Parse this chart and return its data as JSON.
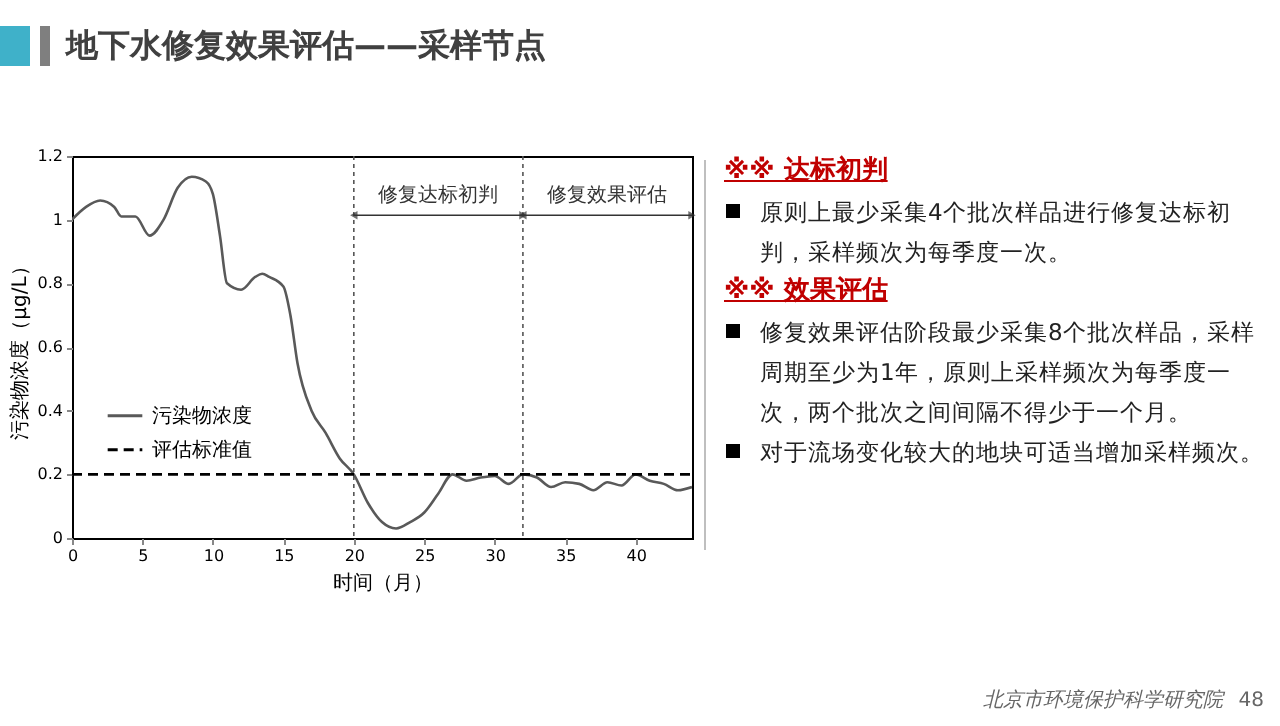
{
  "chart_data": {
    "type": "line",
    "title": "地下水修复效果评估——采样节点",
    "xlabel": "时间（月）",
    "ylabel": "污染物浓度（μg/L）",
    "xlim": [
      0,
      44
    ],
    "xticks": [
      0,
      5,
      10,
      15,
      20,
      25,
      30,
      35,
      40
    ],
    "ylim": [
      0,
      1.2
    ],
    "yticks": [
      0,
      0.2,
      0.4,
      0.6,
      0.8,
      1,
      1.2
    ],
    "series": [
      {
        "name": "污染物浓度",
        "color": "#595959",
        "line_style": "solid",
        "x": [
          0,
          1,
          2,
          3,
          3.5,
          4.5,
          5.5,
          6.5,
          7.5,
          8.5,
          9.5,
          10,
          10.5,
          11,
          12,
          13,
          13.5,
          14,
          15,
          15.5,
          16,
          17,
          18,
          19,
          20,
          21,
          22,
          23,
          24,
          25,
          26,
          27,
          28,
          29,
          30,
          31,
          32,
          33,
          34,
          35,
          36,
          37,
          38,
          39,
          40,
          41,
          42,
          43,
          44
        ],
        "values": [
          1.0,
          1.04,
          1.06,
          1.04,
          1.01,
          1.01,
          0.95,
          1.0,
          1.1,
          1.135,
          1.12,
          1.08,
          0.95,
          0.8,
          0.78,
          0.82,
          0.83,
          0.82,
          0.79,
          0.7,
          0.55,
          0.4,
          0.33,
          0.25,
          0.2,
          0.11,
          0.05,
          0.03,
          0.05,
          0.08,
          0.14,
          0.2,
          0.18,
          0.19,
          0.195,
          0.17,
          0.2,
          0.19,
          0.16,
          0.175,
          0.17,
          0.15,
          0.175,
          0.165,
          0.2,
          0.18,
          0.17,
          0.15,
          0.16
        ]
      },
      {
        "name": "评估标准值",
        "color": "#000000",
        "line_style": "dashed",
        "x": [
          0,
          44
        ],
        "values": [
          0.2,
          0.2
        ]
      }
    ],
    "ref_lines": [
      {
        "axis": "x",
        "value": 20,
        "line_style": "dotted"
      },
      {
        "axis": "x",
        "value": 32,
        "line_style": "dotted"
      }
    ],
    "legend": "left",
    "grid": false,
    "annotations": [
      "※※ 达标初判",
      "原则上最少采集4个批次样品进行修复达标初判，采样频次为每季度一次。",
      "※※ 效果评估",
      "修复效果评估阶段最少采集8个批次样品，采样周期至少为1年，原则上采样频次为每季度一次，两个批次之间间隔不得少于一个月。",
      "对于流场变化较大的地块可适当增加采样频次。",
      "北京市环境保护科学研究院",
      "48",
      "修复达标初判",
      "修复效果评估"
    ]
  }
}
